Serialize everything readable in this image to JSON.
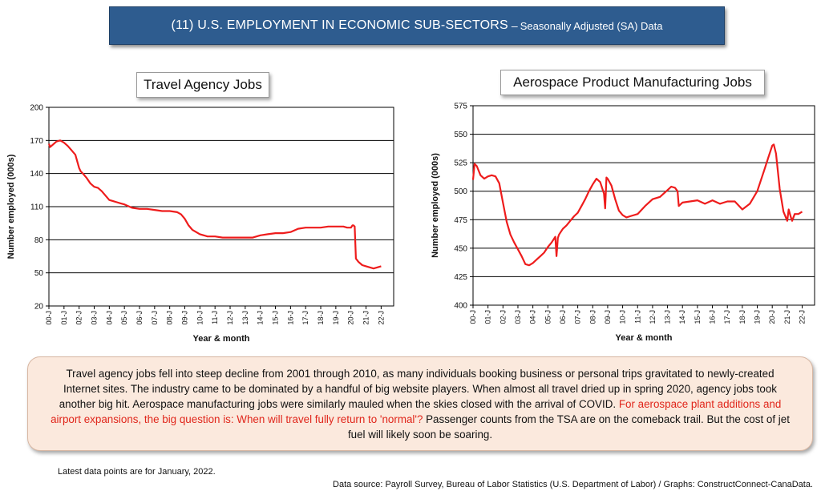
{
  "header": {
    "title_main": "(11) U.S. EMPLOYMENT IN ECONOMIC SUB-SECTORS",
    "title_sep": "–",
    "title_sub": "Seasonally Adjusted (SA) Data"
  },
  "chart_data": [
    {
      "type": "line",
      "title": "Travel Agency Jobs",
      "xlabel": "Year & month",
      "ylabel": "Number employed (000s)",
      "ylim": [
        20,
        200
      ],
      "yticks": [
        20,
        50,
        80,
        110,
        140,
        170,
        200
      ],
      "xlim": [
        2000.0,
        2022.83
      ],
      "x_tick_labels": [
        "00-J",
        "01-J",
        "02-J",
        "03-J",
        "04-J",
        "05-J",
        "06-J",
        "07-J",
        "08-J",
        "09-J",
        "10-J",
        "11-J",
        "12-J",
        "13-J",
        "14-J",
        "15-J",
        "16-J",
        "17-J",
        "18-J",
        "19-J",
        "20-J",
        "21-J",
        "22-J"
      ],
      "grid": "horizontal",
      "series": [
        {
          "color": "#ee1c1c",
          "x": [
            2000.0,
            2000.08,
            2000.25,
            2000.5,
            2000.75,
            2001.0,
            2001.25,
            2001.5,
            2001.75,
            2002.0,
            2002.1,
            2002.25,
            2002.5,
            2002.75,
            2003.0,
            2003.25,
            2003.5,
            2003.75,
            2004.0,
            2004.25,
            2004.5,
            2004.75,
            2005.0,
            2005.5,
            2006.0,
            2006.5,
            2007.0,
            2007.5,
            2008.0,
            2008.5,
            2008.75,
            2009.0,
            2009.25,
            2009.5,
            2010.0,
            2010.5,
            2011.0,
            2011.5,
            2012.0,
            2012.5,
            2013.0,
            2013.5,
            2014.0,
            2014.5,
            2015.0,
            2015.5,
            2016.0,
            2016.5,
            2017.0,
            2017.5,
            2018.0,
            2018.5,
            2019.0,
            2019.5,
            2019.75,
            2020.0,
            2020.1,
            2020.17,
            2020.25,
            2020.33,
            2020.5,
            2020.75,
            2021.0,
            2021.25,
            2021.5,
            2021.75,
            2022.0
          ],
          "y": [
            167,
            164,
            166,
            169,
            170,
            168,
            165,
            161,
            157,
            145,
            142,
            140,
            136,
            131,
            128,
            127,
            124,
            120,
            116,
            115,
            114,
            113,
            112,
            109,
            108,
            108,
            107,
            106,
            106,
            105,
            103,
            99,
            93,
            89,
            85,
            83,
            83,
            82,
            82,
            82,
            82,
            82,
            84,
            85,
            86,
            86,
            87,
            90,
            91,
            91,
            91,
            92,
            92,
            92,
            91,
            91,
            93,
            93,
            92,
            63,
            60,
            57,
            56,
            55,
            54,
            55,
            56
          ]
        }
      ]
    },
    {
      "type": "line",
      "title": "Aerospace Product Manufacturing Jobs",
      "xlabel": "Year & month",
      "ylabel": "Number employed (000s)",
      "ylim": [
        400,
        575
      ],
      "yticks": [
        400,
        425,
        450,
        475,
        500,
        525,
        550,
        575
      ],
      "xlim": [
        2000.0,
        2022.83
      ],
      "x_tick_labels": [
        "00-J",
        "01-J",
        "02-J",
        "03-J",
        "04-J",
        "05-J",
        "06-J",
        "07-J",
        "08-J",
        "09-J",
        "10-J",
        "11-J",
        "12-J",
        "13-J",
        "14-J",
        "15-J",
        "16-J",
        "17-J",
        "18-J",
        "19-J",
        "20-J",
        "21-J",
        "22-J"
      ],
      "grid": "horizontal",
      "series": [
        {
          "color": "#ee1c1c",
          "x": [
            2000.0,
            2000.1,
            2000.25,
            2000.5,
            2000.75,
            2001.0,
            2001.25,
            2001.5,
            2001.75,
            2002.0,
            2002.25,
            2002.5,
            2002.75,
            2003.0,
            2003.25,
            2003.5,
            2003.75,
            2004.0,
            2004.25,
            2004.5,
            2004.75,
            2005.0,
            2005.25,
            2005.5,
            2005.58,
            2005.67,
            2005.75,
            2006.0,
            2006.25,
            2006.5,
            2006.75,
            2007.0,
            2007.25,
            2007.5,
            2007.75,
            2008.0,
            2008.25,
            2008.5,
            2008.75,
            2008.83,
            2008.92,
            2009.0,
            2009.25,
            2009.5,
            2009.75,
            2010.0,
            2010.25,
            2010.5,
            2011.0,
            2011.5,
            2012.0,
            2012.5,
            2013.0,
            2013.25,
            2013.5,
            2013.67,
            2013.75,
            2014.0,
            2014.5,
            2015.0,
            2015.5,
            2016.0,
            2016.5,
            2017.0,
            2017.5,
            2018.0,
            2018.5,
            2019.0,
            2019.5,
            2019.75,
            2020.0,
            2020.1,
            2020.25,
            2020.5,
            2020.75,
            2021.0,
            2021.1,
            2021.25,
            2021.33,
            2021.5,
            2021.75,
            2022.0
          ],
          "y": [
            510,
            524,
            522,
            514,
            511,
            513,
            514,
            513,
            507,
            490,
            473,
            462,
            455,
            449,
            443,
            436,
            435,
            437,
            440,
            443,
            446,
            451,
            455,
            460,
            443,
            459,
            462,
            467,
            470,
            474,
            478,
            481,
            487,
            493,
            500,
            506,
            511,
            508,
            498,
            485,
            512,
            511,
            505,
            493,
            483,
            479,
            477,
            478,
            480,
            487,
            493,
            495,
            501,
            504,
            503,
            500,
            487,
            490,
            491,
            492,
            489,
            492,
            489,
            491,
            491,
            484,
            489,
            500,
            520,
            530,
            540,
            541,
            533,
            502,
            482,
            474,
            484,
            477,
            474,
            480,
            480,
            482
          ]
        }
      ]
    }
  ],
  "note": {
    "text_black_1": "Travel agency jobs fell into steep decline from 2001 through 2010, as many individuals booking business or personal trips gravitated to newly-created Internet sites. The industry came to be dominated by a handful of big website players. When almost all travel dried up in spring 2020, agency jobs took another big hit. Aerospace manufacturing jobs were similarly mauled when the skies closed with the arrival of COVID. ",
    "text_red": "For aerospace plant additions and airport expansions, the big question is: When will travel fully return to 'normal'?",
    "text_black_2": " Passenger counts from the TSA are on the comeback trail. But the cost of jet fuel will likely soon be soaring."
  },
  "footer": {
    "latest": "Latest data points are for January, 2022.",
    "source": "Data source: Payroll Survey, Bureau of Labor Statistics (U.S. Department of Labor) / Graphs: ConstructConnect-CanaData."
  },
  "colors": {
    "banner": "#2e5c8f",
    "line": "#ee1c1c",
    "note_bg": "#fbe9dd",
    "note_red": "#e0261b"
  }
}
